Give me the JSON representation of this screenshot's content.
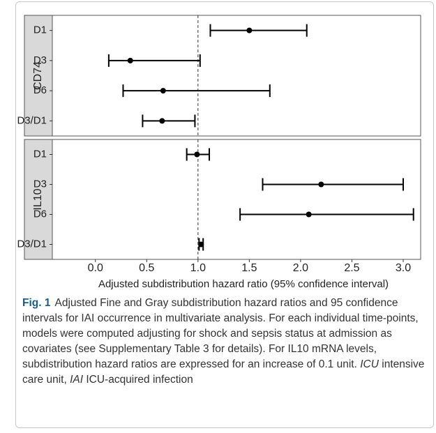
{
  "chart_data": [
    {
      "type": "forest",
      "facet": "CD74",
      "categories": [
        "D1",
        "D3",
        "D6",
        "D3/D1"
      ],
      "values": [
        1.5,
        0.34,
        0.66,
        0.65
      ],
      "lower": [
        1.12,
        0.13,
        0.27,
        0.46
      ],
      "upper": [
        2.06,
        1.02,
        1.7,
        0.97
      ],
      "xlim": [
        -0.42,
        3.17
      ],
      "reference_line": 1,
      "color": "#000000"
    },
    {
      "type": "forest",
      "facet": "IL10",
      "categories": [
        "D1",
        "D3",
        "D6",
        "D3/D1"
      ],
      "values": [
        0.99,
        2.2,
        2.08,
        1.03
      ],
      "lower": [
        0.89,
        1.63,
        1.41,
        1.01
      ],
      "upper": [
        1.11,
        3.0,
        3.1,
        1.05
      ],
      "xlim": [
        -0.42,
        3.17
      ],
      "reference_line": 1,
      "color": "#000000",
      "xticks": [
        {
          "value": 0,
          "label": "0.0"
        },
        {
          "value": 0.5,
          "label": "0.5"
        },
        {
          "value": 1,
          "label": "1.0"
        },
        {
          "value": 1.5,
          "label": "1.5"
        },
        {
          "value": 2,
          "label": "2.0"
        },
        {
          "value": 2.5,
          "label": "2.5"
        },
        {
          "value": 3,
          "label": "3.0"
        }
      ],
      "xlabel": "Adjusted subdistribution hazard ratio (95% confidence interval)"
    }
  ],
  "caption": {
    "label": "Fig. 1",
    "text": "Adjusted Fine and Gray subdistribution hazard ratios and 95 confidence intervals for IAI occurrence in multivariate analysis. For each individual time-points, models were computed adjusting for shock and sepsis status at admission as covariates (see Supplementary Table 3 for details). For IL10 mRNA levels, subdistribution hazard ratios are expressed for an increase of 0.1 unit.",
    "abbreviations": [
      {
        "term": "ICU",
        "definition": "intensive care unit,"
      },
      {
        "term": "IAI",
        "definition": "ICU-acquired infection"
      }
    ]
  }
}
